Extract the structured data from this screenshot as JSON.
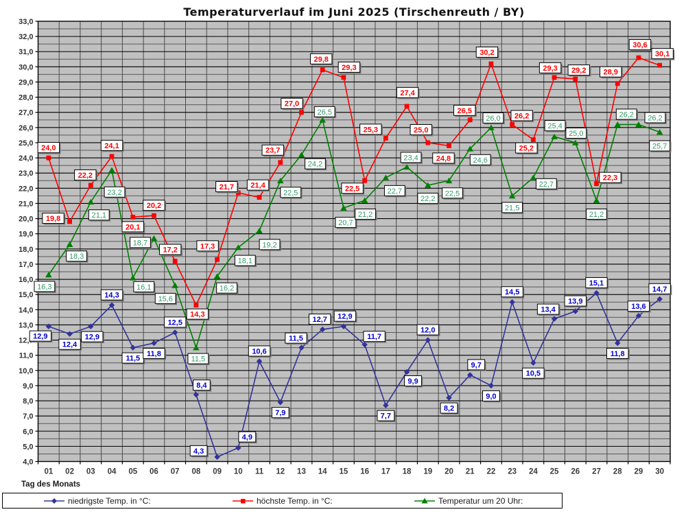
{
  "title": "Temperaturverlauf im Juni 2025 (Tirschenreuth / BY)",
  "x_axis_title": "Tag des Monats",
  "chart_data": {
    "type": "line",
    "title": "Temperaturverlauf im Juni 2025 (Tirschenreuth / BY)",
    "xlabel": "Tag des Monats",
    "ylabel": "",
    "ylim": [
      4.0,
      33.0
    ],
    "y_step_major": 1.0,
    "y_step_minor": 0.5,
    "decimal_separator": ",",
    "grid": true,
    "legend_position": "bottom",
    "plot_bg": "#c0c0c0",
    "grid_major_color": "#000000",
    "grid_minor_color": "#595959",
    "grid_vertical_color": "#4a4a4a",
    "categories": [
      "01",
      "02",
      "03",
      "04",
      "05",
      "06",
      "07",
      "08",
      "09",
      "10",
      "11",
      "12",
      "13",
      "14",
      "15",
      "16",
      "17",
      "18",
      "19",
      "20",
      "21",
      "22",
      "23",
      "24",
      "25",
      "26",
      "27",
      "28",
      "29",
      "30"
    ],
    "series": [
      {
        "name": "niedrigste Temp. in °C:",
        "marker": "diamond",
        "color": "#333399",
        "label_color": "#0000cc",
        "label_bold": true,
        "values": [
          12.9,
          12.4,
          12.9,
          14.3,
          11.5,
          11.8,
          12.5,
          8.4,
          4.3,
          4.9,
          10.6,
          7.9,
          11.5,
          12.7,
          12.9,
          11.7,
          7.7,
          9.9,
          12.0,
          8.2,
          9.7,
          9.0,
          14.5,
          10.5,
          13.4,
          13.9,
          15.1,
          11.8,
          13.6,
          14.7
        ],
        "label_offsets": [
          [
            -12,
            14
          ],
          [
            0,
            15
          ],
          [
            2,
            15
          ],
          [
            0,
            -15
          ],
          [
            0,
            15
          ],
          [
            0,
            15
          ],
          [
            0,
            -15
          ],
          [
            8,
            -14
          ],
          [
            -27,
            -9
          ],
          [
            13,
            -16
          ],
          [
            0,
            -15
          ],
          [
            0,
            15
          ],
          [
            -8,
            -14
          ],
          [
            -4,
            -15
          ],
          [
            2,
            -15
          ],
          [
            14,
            -12
          ],
          [
            0,
            15
          ],
          [
            9,
            13
          ],
          [
            0,
            -15
          ],
          [
            0,
            15
          ],
          [
            9,
            -15
          ],
          [
            0,
            15
          ],
          [
            0,
            -15
          ],
          [
            0,
            15
          ],
          [
            -9,
            -14
          ],
          [
            0,
            -15
          ],
          [
            0,
            -15
          ],
          [
            0,
            15
          ],
          [
            0,
            -14
          ],
          [
            0,
            -15
          ]
        ]
      },
      {
        "name": "höchste Temp. in °C:",
        "marker": "square",
        "color": "#ff0000",
        "label_color": "#ff0000",
        "label_bold": true,
        "values": [
          24.0,
          19.8,
          22.2,
          24.1,
          20.1,
          20.2,
          17.2,
          14.3,
          17.3,
          21.7,
          21.4,
          23.7,
          27.0,
          29.8,
          29.3,
          22.5,
          25.3,
          27.4,
          25.0,
          24.8,
          26.5,
          30.2,
          26.2,
          25.2,
          29.3,
          29.2,
          22.3,
          28.9,
          30.6,
          30.1
        ],
        "label_offsets": [
          [
            0,
            -15
          ],
          [
            -24,
            -5
          ],
          [
            -8,
            -15
          ],
          [
            0,
            -16
          ],
          [
            0,
            14
          ],
          [
            0,
            -15
          ],
          [
            -7,
            -17
          ],
          [
            2,
            13
          ],
          [
            -14,
            -20
          ],
          [
            -17,
            -9
          ],
          [
            -2,
            -18
          ],
          [
            -11,
            -18
          ],
          [
            -14,
            -13
          ],
          [
            -2,
            -16
          ],
          [
            8,
            -15
          ],
          [
            -18,
            11
          ],
          [
            -22,
            -13
          ],
          [
            1,
            -20
          ],
          [
            -10,
            -19
          ],
          [
            -8,
            18
          ],
          [
            -8,
            -14
          ],
          [
            -6,
            -17
          ],
          [
            14,
            -13
          ],
          [
            -10,
            12
          ],
          [
            -6,
            -14
          ],
          [
            5,
            -13
          ],
          [
            20,
            -9
          ],
          [
            -10,
            -17
          ],
          [
            2,
            -19
          ],
          [
            4,
            -17
          ]
        ]
      },
      {
        "name": "Temperatur um 20 Uhr:",
        "marker": "triangle",
        "color": "#008000",
        "label_color": "#339966",
        "label_bold": false,
        "values": [
          16.3,
          18.3,
          21.1,
          23.2,
          16.1,
          18.7,
          15.6,
          11.5,
          16.2,
          18.1,
          19.2,
          22.5,
          24.2,
          26.5,
          20.7,
          21.2,
          22.7,
          23.4,
          22.2,
          22.5,
          24.6,
          26.0,
          21.5,
          22.7,
          25.4,
          25.0,
          21.2,
          26.2,
          26.2,
          25.7
        ],
        "label_offsets": [
          [
            -6,
            17
          ],
          [
            10,
            17
          ],
          [
            12,
            19
          ],
          [
            4,
            32
          ],
          [
            16,
            13
          ],
          [
            -20,
            6
          ],
          [
            -14,
            19
          ],
          [
            3,
            16
          ],
          [
            14,
            17
          ],
          [
            10,
            19
          ],
          [
            15,
            20
          ],
          [
            15,
            17
          ],
          [
            20,
            13
          ],
          [
            3,
            -12
          ],
          [
            3,
            21
          ],
          [
            1,
            20
          ],
          [
            13,
            19
          ],
          [
            6,
            -14
          ],
          [
            0,
            19
          ],
          [
            5,
            18
          ],
          [
            15,
            16
          ],
          [
            3,
            -14
          ],
          [
            0,
            17
          ],
          [
            19,
            9
          ],
          [
            1,
            -16
          ],
          [
            1,
            -14
          ],
          [
            0,
            20
          ],
          [
            13,
            -15
          ],
          [
            24,
            -10
          ],
          [
            0,
            20
          ]
        ]
      }
    ]
  }
}
